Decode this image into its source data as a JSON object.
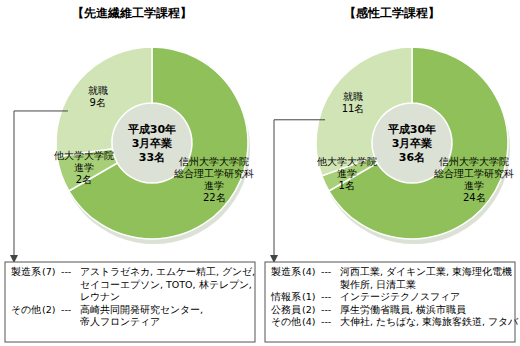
{
  "chart_data": [
    {
      "type": "pie",
      "title": "【先進繊維工学課程】",
      "center_text": [
        "平成30年",
        "3月卒業"
      ],
      "total": 33,
      "total_label": "33名",
      "categories": [
        "信州大学大学院\n総合理工学研究科\n進学",
        "他大学大学院\n進学",
        "就職"
      ],
      "values": [
        22,
        2,
        9
      ],
      "value_labels": [
        "22名",
        "2名",
        "9名"
      ],
      "colors": [
        "#8fc059",
        "#a6cf78",
        "#d0e4b6"
      ],
      "data_labels": true,
      "separator": "---",
      "details": [
        {
          "name": "製造系",
          "count": 7,
          "count_label": "(7)",
          "items": [
            "アストラゼネカ, エムケー精工, グンゼ,",
            "セイコーエプソン, TOTO, 林テレプン,",
            "レウナン"
          ]
        },
        {
          "name": "その他",
          "count": 2,
          "count_label": "(2)",
          "items": [
            "高崎共同開発研究センター,",
            "帝人フロンティア"
          ]
        }
      ]
    },
    {
      "type": "pie",
      "title": "【感性工学課程】",
      "center_text": [
        "平成30年",
        "3月卒業"
      ],
      "total": 36,
      "total_label": "36名",
      "categories": [
        "信州大学大学院\n総合理工学研究科\n進学",
        "他大学大学院\n進学",
        "就職"
      ],
      "values": [
        24,
        1,
        11
      ],
      "value_labels": [
        "24名",
        "1名",
        "11名"
      ],
      "colors": [
        "#8fc059",
        "#a6cf78",
        "#d0e4b6"
      ],
      "data_labels": true,
      "separator": "---",
      "details": [
        {
          "name": "製造系",
          "count": 4,
          "count_label": "(4)",
          "items": [
            "河西工業, ダイキン工業, 東海理化電機",
            "製作所, 日清工業"
          ]
        },
        {
          "name": "情報系",
          "count": 1,
          "count_label": "(1)",
          "items": [
            "インテージテクノスフィア"
          ]
        },
        {
          "name": "公務員",
          "count": 2,
          "count_label": "(2)",
          "items": [
            "厚生労働省職員, 横浜市職員"
          ]
        },
        {
          "name": "その他",
          "count": 4,
          "count_label": "(4)",
          "items": [
            "大伸社, たちばな, 東海旅客鉄道, フタバ"
          ]
        }
      ]
    }
  ]
}
